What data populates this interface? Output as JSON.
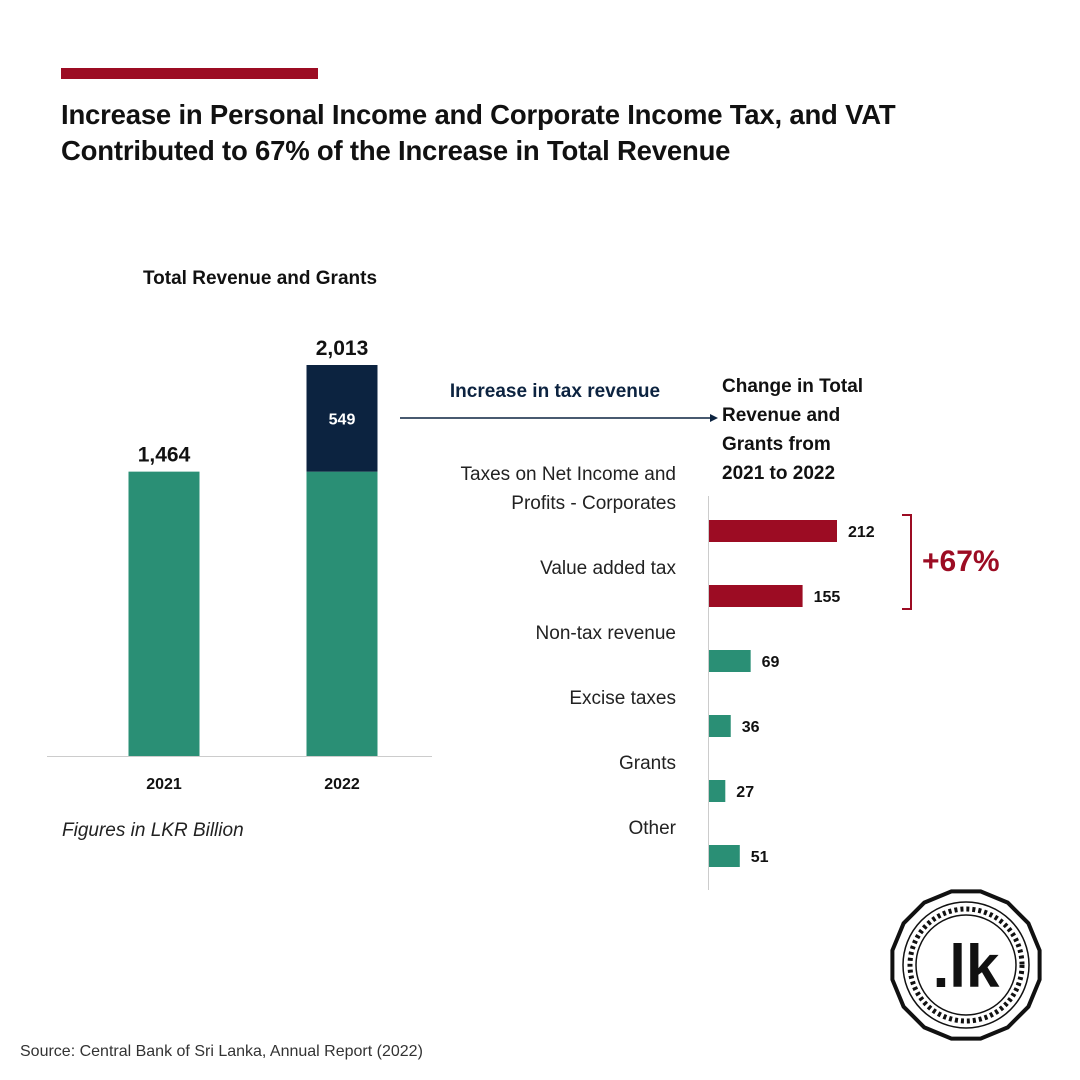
{
  "header": {
    "title_line1": "Increase in Personal Income and Corporate Income Tax, and VAT",
    "title_line2": "Contributed to 67% of the Increase in Total Revenue"
  },
  "flow_label": "Increase in tax revenue",
  "colors": {
    "accent_red": "#9c0c23",
    "green": "#2a8f75",
    "navy": "#0c2340",
    "axis": "#cccccc"
  },
  "chart_data": [
    {
      "type": "bar",
      "stacked": true,
      "title": "Total Revenue and Grants",
      "categories": [
        "2021",
        "2022"
      ],
      "series": [
        {
          "values": [
            1464,
            1464
          ],
          "color": "#2a8f75"
        },
        {
          "values": [
            0,
            549
          ],
          "color": "#0c2340"
        }
      ],
      "data_labels": [
        "1,464",
        "2,013"
      ],
      "segment_label": "549",
      "ylim": [
        0,
        2013
      ]
    },
    {
      "type": "bar",
      "orientation": "horizontal",
      "title_lines": [
        "Change in Total",
        "Revenue and",
        "Grants from",
        "2021 to 2022"
      ],
      "categories": [
        [
          "Taxes on Net Income and",
          "Profits - Corporates"
        ],
        [
          "Value added tax"
        ],
        [
          "Non-tax revenue"
        ],
        [
          "Excise taxes"
        ],
        [
          "Grants"
        ],
        [
          "Other"
        ]
      ],
      "values": [
        212,
        155,
        69,
        36,
        27,
        51
      ],
      "highlight": [
        true,
        true,
        false,
        false,
        false,
        false
      ],
      "annotation": "+67%"
    }
  ],
  "units_note": "Figures in LKR Billion",
  "source": "Source: Central Bank of Sri Lanka, Annual Report (2022)",
  "logo": {
    "text": ".lk",
    "icon": "lk-seal-icon"
  }
}
